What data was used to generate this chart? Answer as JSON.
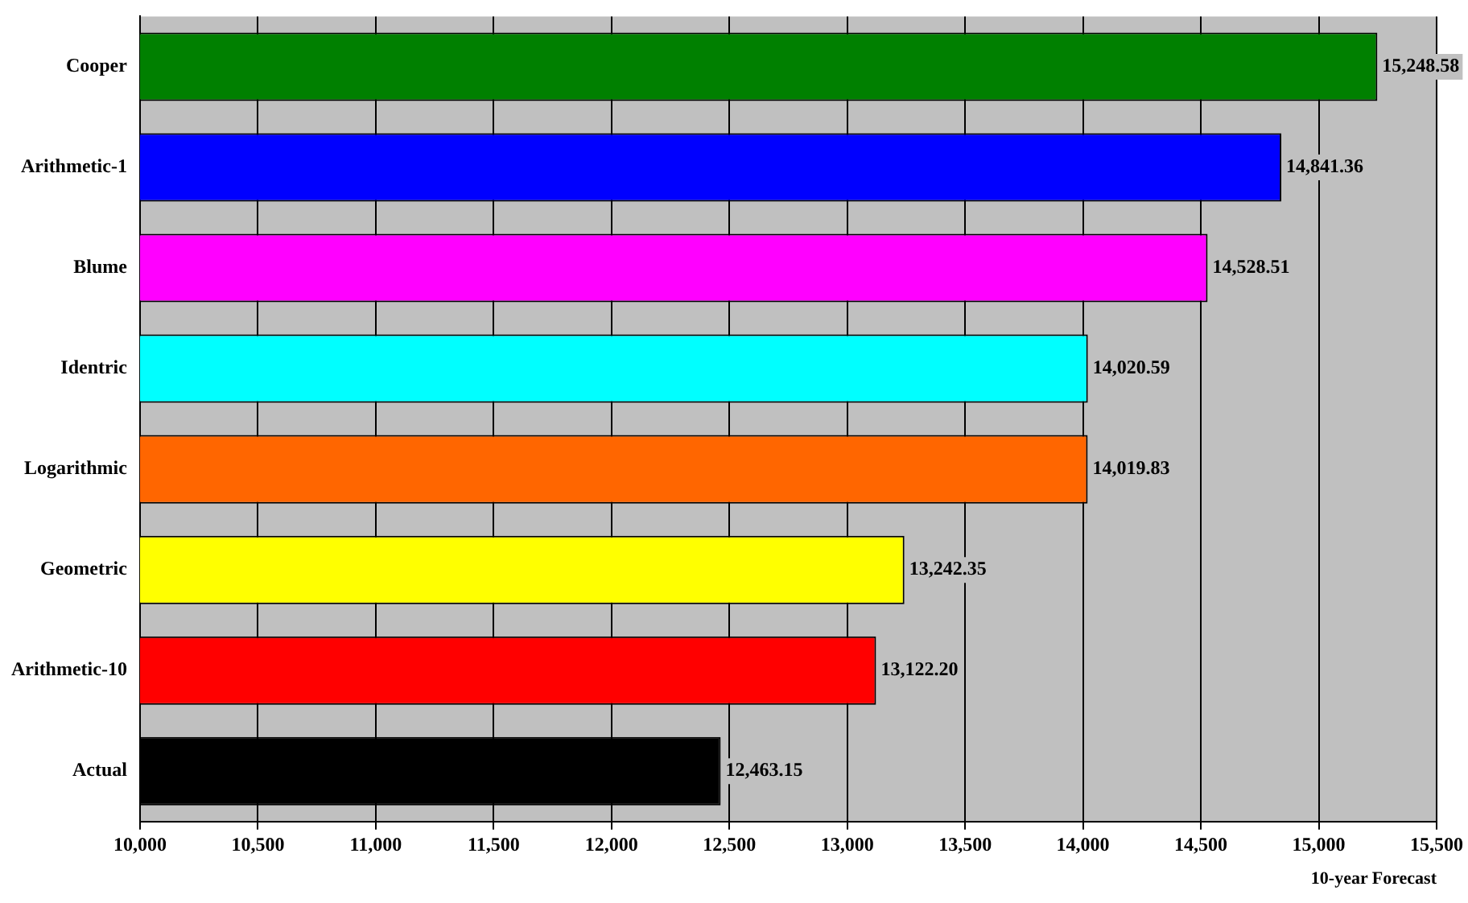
{
  "chart_data": {
    "type": "bar",
    "orientation": "horizontal",
    "xlabel": "10-year Forecast",
    "categories": [
      "Cooper",
      "Arithmetic-1",
      "Blume",
      "Identric",
      "Logarithmic",
      "Geometric",
      "Arithmetic-10",
      "Actual"
    ],
    "values": [
      15248.58,
      14841.36,
      14528.51,
      14020.59,
      14019.83,
      13242.35,
      13122.2,
      12463.15
    ],
    "value_labels": [
      "15,248.58",
      "14,841.36",
      "14,528.51",
      "14,020.59",
      "14,019.83",
      "13,242.35",
      "13,122.20",
      "12,463.15"
    ],
    "colors": [
      "#008000",
      "#0000ff",
      "#ff00ff",
      "#00ffff",
      "#ff6600",
      "#ffff00",
      "#ff0000",
      "#000000"
    ],
    "xlim": [
      10000,
      15500
    ],
    "xticks": [
      {
        "value": 10000,
        "label": "10,000"
      },
      {
        "value": 10500,
        "label": "10,500"
      },
      {
        "value": 11000,
        "label": "11,000"
      },
      {
        "value": 11500,
        "label": "11,500"
      },
      {
        "value": 12000,
        "label": "12,000"
      },
      {
        "value": 12500,
        "label": "12,500"
      },
      {
        "value": 13000,
        "label": "13,000"
      },
      {
        "value": 13500,
        "label": "13,500"
      },
      {
        "value": 14000,
        "label": "14,000"
      },
      {
        "value": 14500,
        "label": "14,500"
      },
      {
        "value": 15000,
        "label": "15,000"
      },
      {
        "value": 15500,
        "label": "15,500"
      }
    ],
    "grid": "x",
    "legend": false
  }
}
